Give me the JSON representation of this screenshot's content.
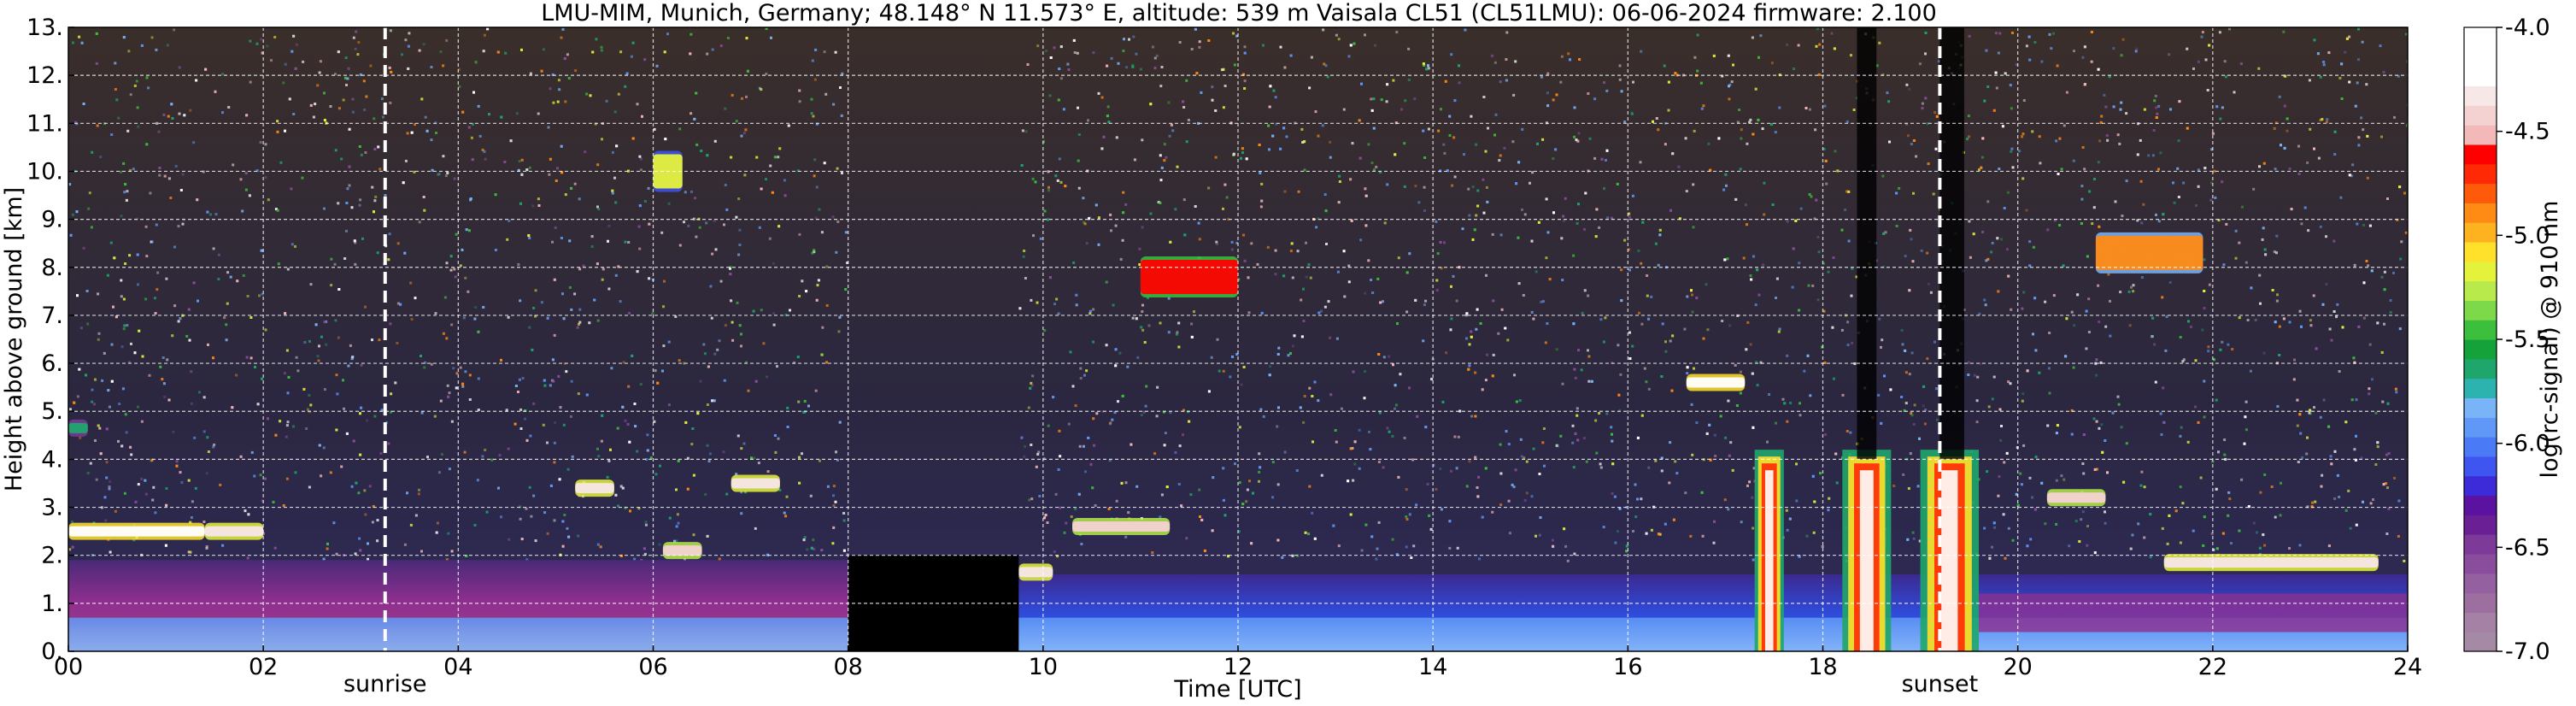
{
  "chart_data": {
    "type": "heatmap",
    "title": "LMU-MIM, Munich, Germany; 48.148° N 11.573° E, altitude: 539 m    Vaisala CL51 (CL51LMU): 06-06-2024    firmware: 2.100",
    "xlabel": "Time [UTC]",
    "ylabel": "Height above ground [km]",
    "xlim": [
      0,
      24
    ],
    "ylim": [
      0,
      13
    ],
    "x_ticks": [
      {
        "value": 0,
        "label": "00"
      },
      {
        "value": 2,
        "label": "02"
      },
      {
        "value": 4,
        "label": "04"
      },
      {
        "value": 6,
        "label": "06"
      },
      {
        "value": 8,
        "label": "08"
      },
      {
        "value": 10,
        "label": "10"
      },
      {
        "value": 12,
        "label": "12"
      },
      {
        "value": 14,
        "label": "14"
      },
      {
        "value": 16,
        "label": "16"
      },
      {
        "value": 18,
        "label": "18"
      },
      {
        "value": 20,
        "label": "20"
      },
      {
        "value": 22,
        "label": "22"
      },
      {
        "value": 24,
        "label": "24"
      }
    ],
    "y_ticks": [
      {
        "value": 0,
        "label": "0."
      },
      {
        "value": 1,
        "label": "1."
      },
      {
        "value": 2,
        "label": "2."
      },
      {
        "value": 3,
        "label": "3."
      },
      {
        "value": 4,
        "label": "4."
      },
      {
        "value": 5,
        "label": "5."
      },
      {
        "value": 6,
        "label": "6."
      },
      {
        "value": 7,
        "label": "7."
      },
      {
        "value": 8,
        "label": "8."
      },
      {
        "value": 9,
        "label": "9."
      },
      {
        "value": 10,
        "label": "10."
      },
      {
        "value": 11,
        "label": "11."
      },
      {
        "value": 12,
        "label": "12."
      },
      {
        "value": 13,
        "label": "13."
      }
    ],
    "grid": true,
    "events": [
      {
        "label": "sunrise",
        "time": 3.25
      },
      {
        "label": "sunset",
        "time": 19.2
      }
    ],
    "missing_data": [
      {
        "from": 8.0,
        "to": 9.75
      }
    ],
    "colorbar": {
      "label": "log(rc-signal) @ 910 nm",
      "range": [
        -7.0,
        -4.0
      ],
      "ticks": [
        {
          "value": -4.0,
          "label": "-4.0"
        },
        {
          "value": -4.5,
          "label": "-4.5"
        },
        {
          "value": -5.0,
          "label": "-5.0"
        },
        {
          "value": -5.5,
          "label": "-5.5"
        },
        {
          "value": -6.0,
          "label": "-6.0"
        },
        {
          "value": -6.5,
          "label": "-6.5"
        },
        {
          "value": -7.0,
          "label": "-7.0"
        }
      ],
      "colors": [
        "#a58aa5",
        "#a582a5",
        "#9c6fa0",
        "#9460a0",
        "#8a4d9e",
        "#7d3a99",
        "#6a1f95",
        "#5b12a0",
        "#3d2ad8",
        "#3f55f0",
        "#4a7af5",
        "#5f98f7",
        "#7ab4f8",
        "#2cb3b0",
        "#1ea66c",
        "#15a23a",
        "#3cbf3c",
        "#7dd84a",
        "#b7ea4a",
        "#e5f23b",
        "#ffe02a",
        "#ffb21f",
        "#ff8a14",
        "#ff5a0a",
        "#ff2a05",
        "#ff0000",
        "#f3b9b9",
        "#f5d2d2",
        "#f7e7e7",
        "#ffffff",
        "#ffffff",
        "#ffffff"
      ]
    },
    "features": [
      {
        "kind": "boundary_layer",
        "from": 0.0,
        "to": 8.0,
        "top_km": 1.9,
        "level": -6.6
      },
      {
        "kind": "boundary_layer",
        "from": 9.75,
        "to": 24.0,
        "top_km": 1.6,
        "level": -6.2
      },
      {
        "kind": "surface_aerosol",
        "from": 0.0,
        "to": 24.0,
        "top_km": 0.7,
        "level": -6.0
      },
      {
        "kind": "cloud",
        "from": 0.0,
        "to": 1.4,
        "height_km": 2.5,
        "level": -4.2
      },
      {
        "kind": "cloud",
        "from": 1.4,
        "to": 2.0,
        "height_km": 2.5,
        "level": -4.3
      },
      {
        "kind": "cloud",
        "from": 0.0,
        "to": 0.2,
        "height_km": 4.65,
        "level": -5.6
      },
      {
        "kind": "cloud",
        "from": 5.2,
        "to": 5.6,
        "height_km": 3.4,
        "level": -4.3
      },
      {
        "kind": "cloud",
        "from": 6.8,
        "to": 7.3,
        "height_km": 3.5,
        "level": -4.3
      },
      {
        "kind": "cloud",
        "from": 6.1,
        "to": 6.5,
        "height_km": 2.1,
        "level": -4.4
      },
      {
        "kind": "cloud",
        "from": 9.75,
        "to": 10.1,
        "height_km": 1.65,
        "level": -4.3
      },
      {
        "kind": "cloud",
        "from": 10.3,
        "to": 11.3,
        "height_km": 2.6,
        "level": -4.4
      },
      {
        "kind": "cloud",
        "from": 11.0,
        "to": 12.0,
        "height_km": 7.8,
        "level": -4.6
      },
      {
        "kind": "cloud",
        "from": 6.0,
        "to": 6.3,
        "height_km": 10.0,
        "level": -5.2
      },
      {
        "kind": "cloud",
        "from": 16.6,
        "to": 17.2,
        "height_km": 5.6,
        "level": -4.2
      },
      {
        "kind": "precipitation",
        "from": 17.3,
        "to": 17.6,
        "height_km": 2.0,
        "level": -4.3
      },
      {
        "kind": "precipitation",
        "from": 18.2,
        "to": 18.7,
        "height_km": 2.0,
        "level": -4.2
      },
      {
        "kind": "precipitation",
        "from": 19.0,
        "to": 19.6,
        "height_km": 2.0,
        "level": -4.2
      },
      {
        "kind": "cloud",
        "from": 20.8,
        "to": 21.9,
        "height_km": 8.3,
        "level": -4.9
      },
      {
        "kind": "cloud",
        "from": 20.3,
        "to": 20.9,
        "height_km": 3.2,
        "level": -4.4
      },
      {
        "kind": "cloud",
        "from": 21.5,
        "to": 23.7,
        "height_km": 1.85,
        "level": -4.3
      }
    ]
  }
}
